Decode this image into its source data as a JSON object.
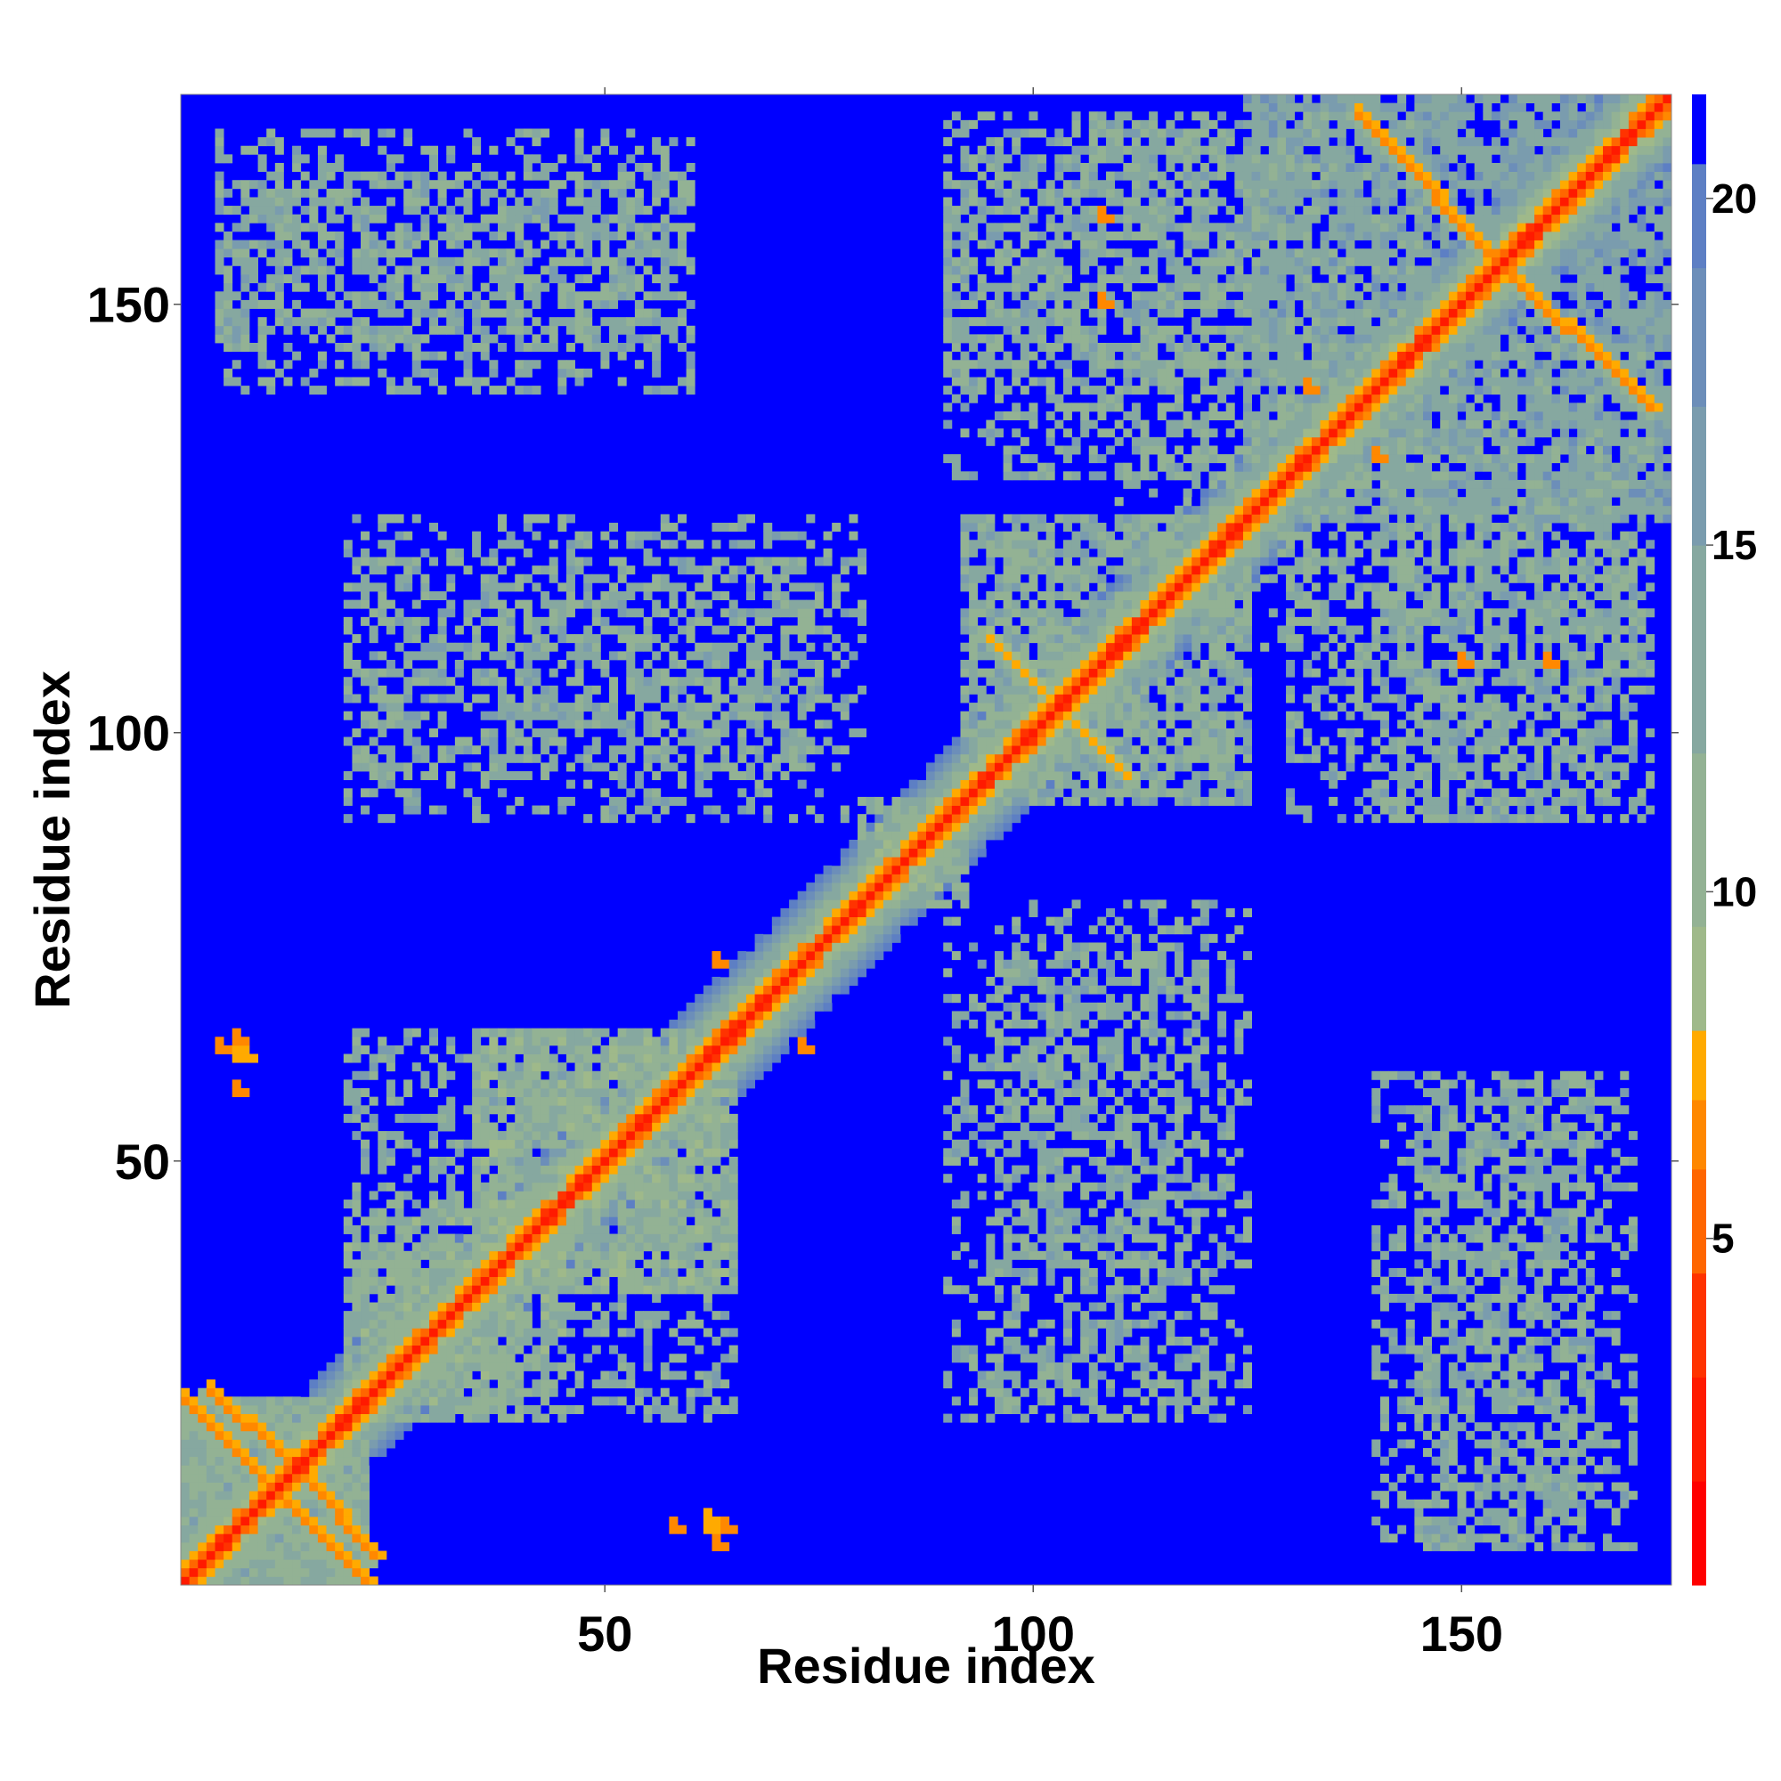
{
  "chart_data": {
    "type": "heatmap",
    "title": "",
    "xlabel": "Residue index",
    "ylabel": "Residue index",
    "n_residues": 174,
    "xlim": [
      0.5,
      174.5
    ],
    "ylim": [
      0.5,
      174.5
    ],
    "xticks": [
      50,
      100,
      150
    ],
    "yticks": [
      50,
      100,
      150
    ],
    "colorbar": {
      "range": [
        0,
        21.5
      ],
      "ticks": [
        5,
        10,
        15,
        20
      ],
      "levels": [
        {
          "upper": 1.5,
          "color": "#ff0000"
        },
        {
          "upper": 3,
          "color": "#ff1a00"
        },
        {
          "upper": 4.5,
          "color": "#ff3300"
        },
        {
          "upper": 6,
          "color": "#ff6600"
        },
        {
          "upper": 7,
          "color": "#ff8800"
        },
        {
          "upper": 8,
          "color": "#ffaa00"
        },
        {
          "upper": 9.5,
          "color": "#9fb98a"
        },
        {
          "upper": 12,
          "color": "#93b294"
        },
        {
          "upper": 15,
          "color": "#86a8a0"
        },
        {
          "upper": 17,
          "color": "#7a9cae"
        },
        {
          "upper": 19,
          "color": "#6c8eb9"
        },
        {
          "upper": 20.5,
          "color": "#5d7fc4"
        },
        {
          "upper": 21.5,
          "color": "#0000ff"
        }
      ]
    },
    "background_color": "#0000ff",
    "diagonal_band": {
      "core_value": 2,
      "band": [
        [
          1,
          5
        ],
        [
          2,
          7.5
        ],
        [
          3,
          10
        ],
        [
          4,
          12
        ],
        [
          5,
          14
        ],
        [
          6,
          16
        ],
        [
          7,
          18
        ],
        [
          8,
          20
        ]
      ]
    },
    "patches": [
      {
        "x": [
          1,
          22
        ],
        "y": [
          1,
          22
        ],
        "value": 13,
        "density": 0.9
      },
      {
        "x": [
          20,
          40
        ],
        "y": [
          20,
          45
        ],
        "value": 12,
        "density": 0.6
      },
      {
        "x": [
          35,
          65
        ],
        "y": [
          35,
          65
        ],
        "value": 12,
        "density": 0.6
      },
      {
        "x": [
          80,
          92
        ],
        "y": [
          80,
          92
        ],
        "value": 12,
        "density": 0.6
      },
      {
        "x": [
          92,
          125
        ],
        "y": [
          92,
          125
        ],
        "value": 13,
        "density": 0.5
      },
      {
        "x": [
          125,
          174
        ],
        "y": [
          125,
          174
        ],
        "value": 15,
        "density": 0.55
      },
      {
        "x": [
          5,
          60
        ],
        "y": [
          145,
          165
        ],
        "value": 13,
        "density": 0.4
      },
      {
        "x": [
          20,
          75
        ],
        "y": [
          95,
          120
        ],
        "value": 13,
        "density": 0.35
      },
      {
        "x": [
          90,
          120
        ],
        "y": [
          130,
          172
        ],
        "value": 13,
        "density": 0.4
      },
      {
        "x": [
          120,
          145
        ],
        "y": [
          110,
          172
        ],
        "value": 13,
        "density": 0.35
      },
      {
        "x": [
          140,
          170
        ],
        "y": [
          90,
          125
        ],
        "value": 13,
        "density": 0.4
      },
      {
        "x": [
          90,
          125
        ],
        "y": [
          20,
          80
        ],
        "value": 13,
        "density": 0.3
      },
      {
        "x": [
          140,
          170
        ],
        "y": [
          5,
          60
        ],
        "value": 13,
        "density": 0.35
      },
      {
        "x": [
          30,
          65
        ],
        "y": [
          20,
          50
        ],
        "value": 13,
        "density": 0.35
      }
    ],
    "contact_lines": [
      {
        "x": [
          1,
          10
        ],
        "y": [
          22,
          13
        ],
        "value": 6.5
      },
      {
        "x": [
          15,
          23
        ],
        "y": [
          13,
          4
        ],
        "value": 6.5
      },
      {
        "x": [
          95,
          103
        ],
        "y": [
          111,
          103
        ],
        "value": 7.5
      },
      {
        "x": [
          103,
          111
        ],
        "y": [
          103,
          95
        ],
        "value": 7.5
      },
      {
        "x": [
          140,
          154
        ],
        "y": [
          170,
          155
        ],
        "value": 6.5
      },
      {
        "x": [
          154,
          172
        ],
        "y": [
          155,
          138
        ],
        "value": 6.5
      }
    ],
    "contact_spots": [
      {
        "x": 7,
        "y": 64,
        "value": 6.5
      },
      {
        "x": 8,
        "y": 62,
        "value": 7.5
      },
      {
        "x": 63,
        "y": 5,
        "value": 6.5
      },
      {
        "x": 62,
        "y": 7,
        "value": 7.5
      },
      {
        "x": 58,
        "y": 7,
        "value": 6.5
      },
      {
        "x": 63,
        "y": 73,
        "value": 7.5
      },
      {
        "x": 73,
        "y": 63,
        "value": 6.5
      },
      {
        "x": 108,
        "y": 150,
        "value": 6.5
      },
      {
        "x": 108,
        "y": 160,
        "value": 6.5
      },
      {
        "x": 150,
        "y": 108,
        "value": 6.5
      },
      {
        "x": 160,
        "y": 108,
        "value": 6.5
      },
      {
        "x": 132,
        "y": 140,
        "value": 6.5
      },
      {
        "x": 140,
        "y": 132,
        "value": 6.5
      }
    ]
  }
}
